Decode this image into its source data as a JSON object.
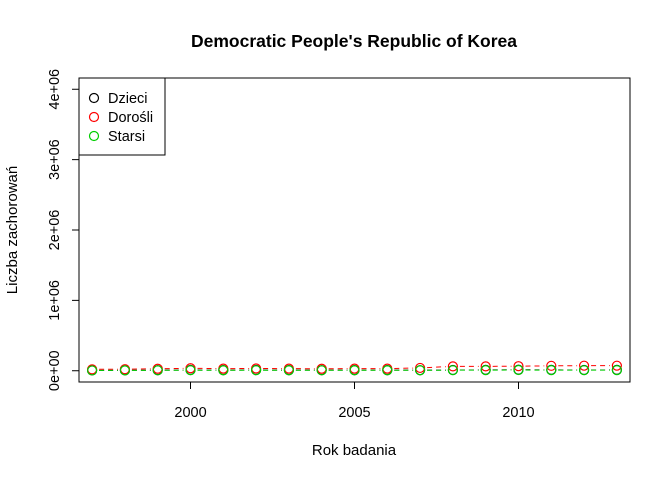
{
  "chart_data": {
    "type": "line",
    "title": "Democratic People's Republic of Korea",
    "xlabel": "Rok badania",
    "ylabel": "Liczba zachorowań",
    "x": [
      1997,
      1998,
      1999,
      2000,
      2001,
      2002,
      2003,
      2004,
      2005,
      2006,
      2007,
      2008,
      2009,
      2010,
      2011,
      2012,
      2013
    ],
    "xlim": [
      1996.6,
      2013.4
    ],
    "ylim": [
      -160000,
      4160000
    ],
    "x_ticks": [
      2000,
      2005,
      2010
    ],
    "x_tick_labels": [
      "2000",
      "2005",
      "2010"
    ],
    "y_ticks": [
      0,
      1000000,
      2000000,
      3000000,
      4000000
    ],
    "y_tick_labels": [
      "0e+00",
      "1e+06",
      "2e+06",
      "3e+06",
      "4e+06"
    ],
    "series": [
      {
        "name": "Dzieci",
        "color": "#000000",
        "values": [
          5000,
          6000,
          8000,
          10000,
          9000,
          10000,
          9000,
          8000,
          9000,
          9000,
          8000,
          10000,
          12000,
          14000,
          12000,
          10000,
          12000
        ]
      },
      {
        "name": "Dorośli",
        "color": "#FF0000",
        "values": [
          20000,
          22000,
          28000,
          35000,
          30000,
          32000,
          30000,
          28000,
          30000,
          30000,
          40000,
          62000,
          62000,
          65000,
          70000,
          72000,
          72000
        ]
      },
      {
        "name": "Starsi",
        "color": "#00CD00",
        "values": [
          4000,
          5000,
          6000,
          8000,
          7000,
          8000,
          7000,
          6000,
          7000,
          7000,
          7000,
          8000,
          9000,
          10000,
          9000,
          8000,
          9000
        ]
      }
    ],
    "legend": {
      "position": "top-left"
    },
    "grid": false,
    "line_style": "dashed",
    "marker": "open-circle"
  }
}
